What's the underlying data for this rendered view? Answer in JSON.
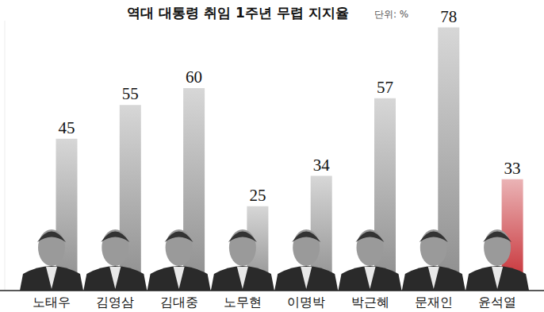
{
  "chart_data": {
    "type": "bar",
    "title": "역대 대통령 취임 1주년 무렵 지지율",
    "subtitle": "단위: %",
    "categories": [
      "노태우",
      "김영삼",
      "김대중",
      "노무현",
      "이명박",
      "박근혜",
      "문재인",
      "윤석열"
    ],
    "values": [
      45,
      55,
      60,
      25,
      34,
      57,
      78,
      33
    ],
    "colors": [
      "#8c8c8c",
      "#8c8c8c",
      "#8c8c8c",
      "#8c8c8c",
      "#8c8c8c",
      "#8c8c8c",
      "#8c8c8c",
      "#c4262c"
    ],
    "ylim": [
      0,
      80
    ],
    "data_labels": true,
    "tick_labels": "x",
    "grid": false
  }
}
